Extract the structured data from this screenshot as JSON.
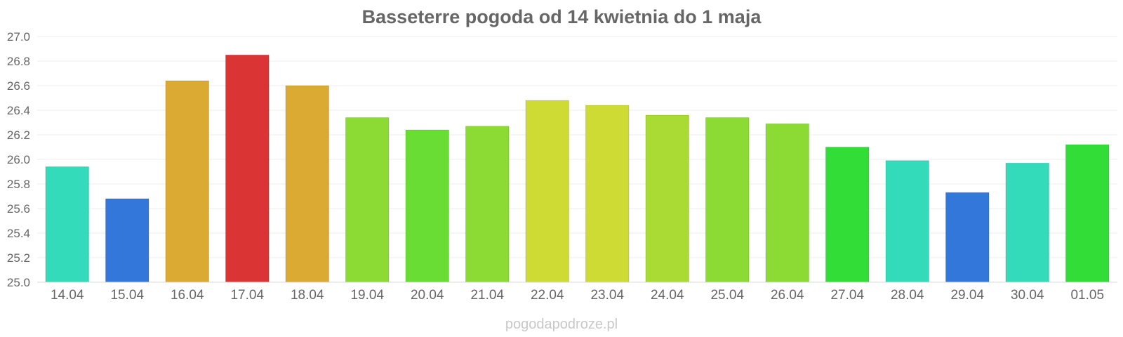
{
  "chart_data": {
    "type": "bar",
    "title": "Basseterre pogoda od 14 kwietnia do 1 maja",
    "xlabel": "",
    "ylabel": "",
    "categories": [
      "14.04",
      "15.04",
      "16.04",
      "17.04",
      "18.04",
      "19.04",
      "20.04",
      "21.04",
      "22.04",
      "23.04",
      "24.04",
      "25.04",
      "26.04",
      "27.04",
      "28.04",
      "29.04",
      "30.04",
      "01.05"
    ],
    "values": [
      25.94,
      25.68,
      26.64,
      26.85,
      26.6,
      26.34,
      26.24,
      26.27,
      26.48,
      26.44,
      26.36,
      26.34,
      26.29,
      26.1,
      25.99,
      25.73,
      25.97,
      26.12
    ],
    "colors": [
      "#33dbbb",
      "#3477db",
      "#dbaa33",
      "#db3434",
      "#dbaa33",
      "#8bdb34",
      "#6add34",
      "#8bdb34",
      "#cedb34",
      "#cedb34",
      "#a9db34",
      "#8bdb34",
      "#8bdb34",
      "#33dd38",
      "#33dbbb",
      "#3477db",
      "#33dbbb",
      "#33dd38"
    ],
    "ylim": [
      25.0,
      27.0
    ],
    "yticks": [
      "25.0",
      "25.2",
      "25.4",
      "25.6",
      "25.8",
      "26.0",
      "26.2",
      "26.4",
      "26.6",
      "26.8",
      "27.0"
    ],
    "grid": true,
    "legend": "none"
  },
  "watermark": "pogodapodroze.pl"
}
